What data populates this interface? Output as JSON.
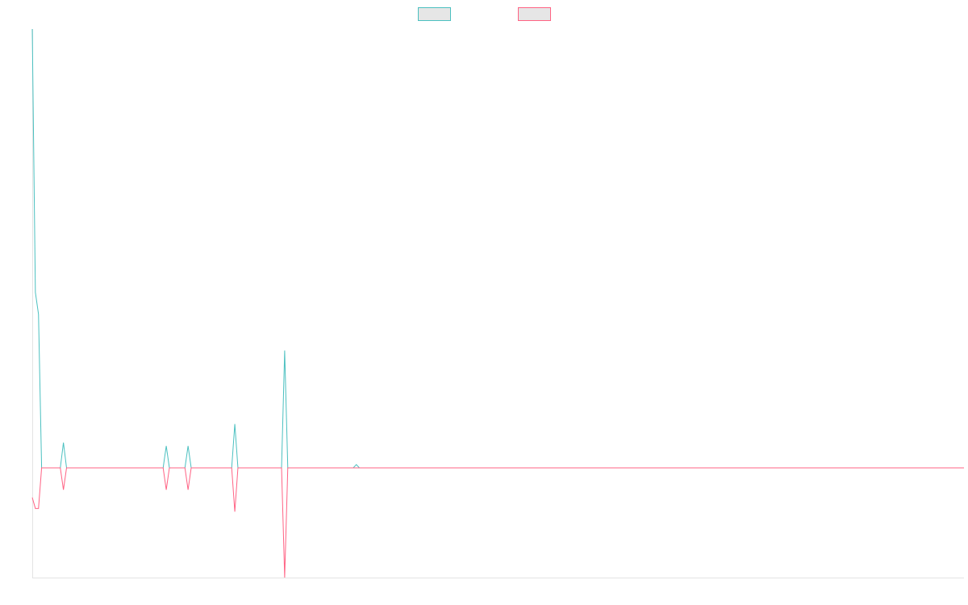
{
  "chart_data": {
    "type": "line",
    "title": "",
    "xlabel": "",
    "ylabel": "",
    "x_count": 300,
    "ylim": [
      -100,
      400
    ],
    "grid": false,
    "legend_position": "top-center",
    "series": [
      {
        "name": "",
        "color": "#4bc0c0",
        "values_sparse": [
          [
            0,
            400
          ],
          [
            1,
            160
          ],
          [
            2,
            140
          ],
          [
            3,
            0
          ],
          [
            10,
            23
          ],
          [
            43,
            20
          ],
          [
            50,
            20
          ],
          [
            65,
            40
          ],
          [
            81,
            107
          ],
          [
            104,
            3
          ]
        ]
      },
      {
        "name": "",
        "color": "#ff6384",
        "values_sparse": [
          [
            0,
            -27
          ],
          [
            1,
            -37
          ],
          [
            2,
            -37
          ],
          [
            3,
            0
          ],
          [
            10,
            -20
          ],
          [
            43,
            -20
          ],
          [
            50,
            -20
          ],
          [
            65,
            -40
          ],
          [
            81,
            -100
          ]
        ]
      }
    ]
  }
}
